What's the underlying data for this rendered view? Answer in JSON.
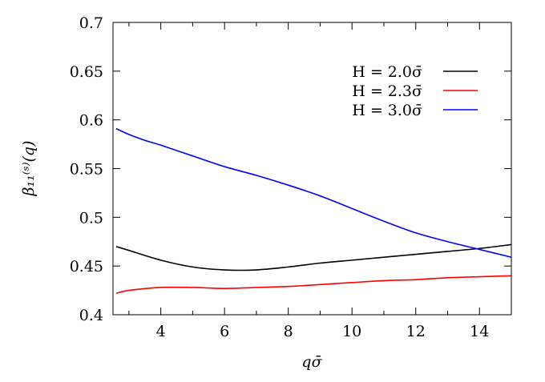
{
  "chart_data": {
    "type": "line",
    "title": "",
    "xlabel": "qσ̄",
    "ylabel": "β₁₁⁽ˢ⁾(q)",
    "xlim": [
      2.5,
      15
    ],
    "ylim": [
      0.4,
      0.7
    ],
    "xticks": [
      4,
      6,
      8,
      10,
      12,
      14
    ],
    "xtick_labels": [
      "4",
      "6",
      "8",
      "10",
      "12",
      "14"
    ],
    "xminor": [
      3,
      5,
      7,
      9,
      11,
      13
    ],
    "yticks": [
      0.4,
      0.45,
      0.5,
      0.55,
      0.6,
      0.65,
      0.7
    ],
    "ytick_labels": [
      "0.4",
      "0.45",
      "0.5",
      "0.55",
      "0.6",
      "0.65",
      "0.7"
    ],
    "grid": false,
    "legend_position": "top-right",
    "series": [
      {
        "name": "H = 2.0σ̄",
        "color": "#000000",
        "x": [
          2.6,
          3,
          4,
          5,
          6,
          7,
          8,
          9,
          10,
          11,
          12,
          13,
          14,
          15
        ],
        "y": [
          0.47,
          0.466,
          0.456,
          0.449,
          0.446,
          0.446,
          0.449,
          0.453,
          0.456,
          0.459,
          0.462,
          0.465,
          0.468,
          0.472
        ]
      },
      {
        "name": "H = 2.3σ̄",
        "color": "#ff0000",
        "x": [
          2.6,
          3,
          4,
          5,
          6,
          7,
          8,
          9,
          10,
          11,
          12,
          13,
          14,
          15
        ],
        "y": [
          0.422,
          0.425,
          0.428,
          0.428,
          0.427,
          0.428,
          0.429,
          0.431,
          0.433,
          0.435,
          0.436,
          0.438,
          0.439,
          0.44
        ]
      },
      {
        "name": "H = 3.0σ̄",
        "color": "#0000ff",
        "x": [
          2.6,
          3,
          3.5,
          4,
          5,
          6,
          7,
          8,
          9,
          10,
          11,
          12,
          13,
          14,
          15
        ],
        "y": [
          0.591,
          0.585,
          0.579,
          0.574,
          0.563,
          0.552,
          0.543,
          0.533,
          0.522,
          0.509,
          0.496,
          0.484,
          0.475,
          0.467,
          0.459
        ]
      }
    ]
  }
}
